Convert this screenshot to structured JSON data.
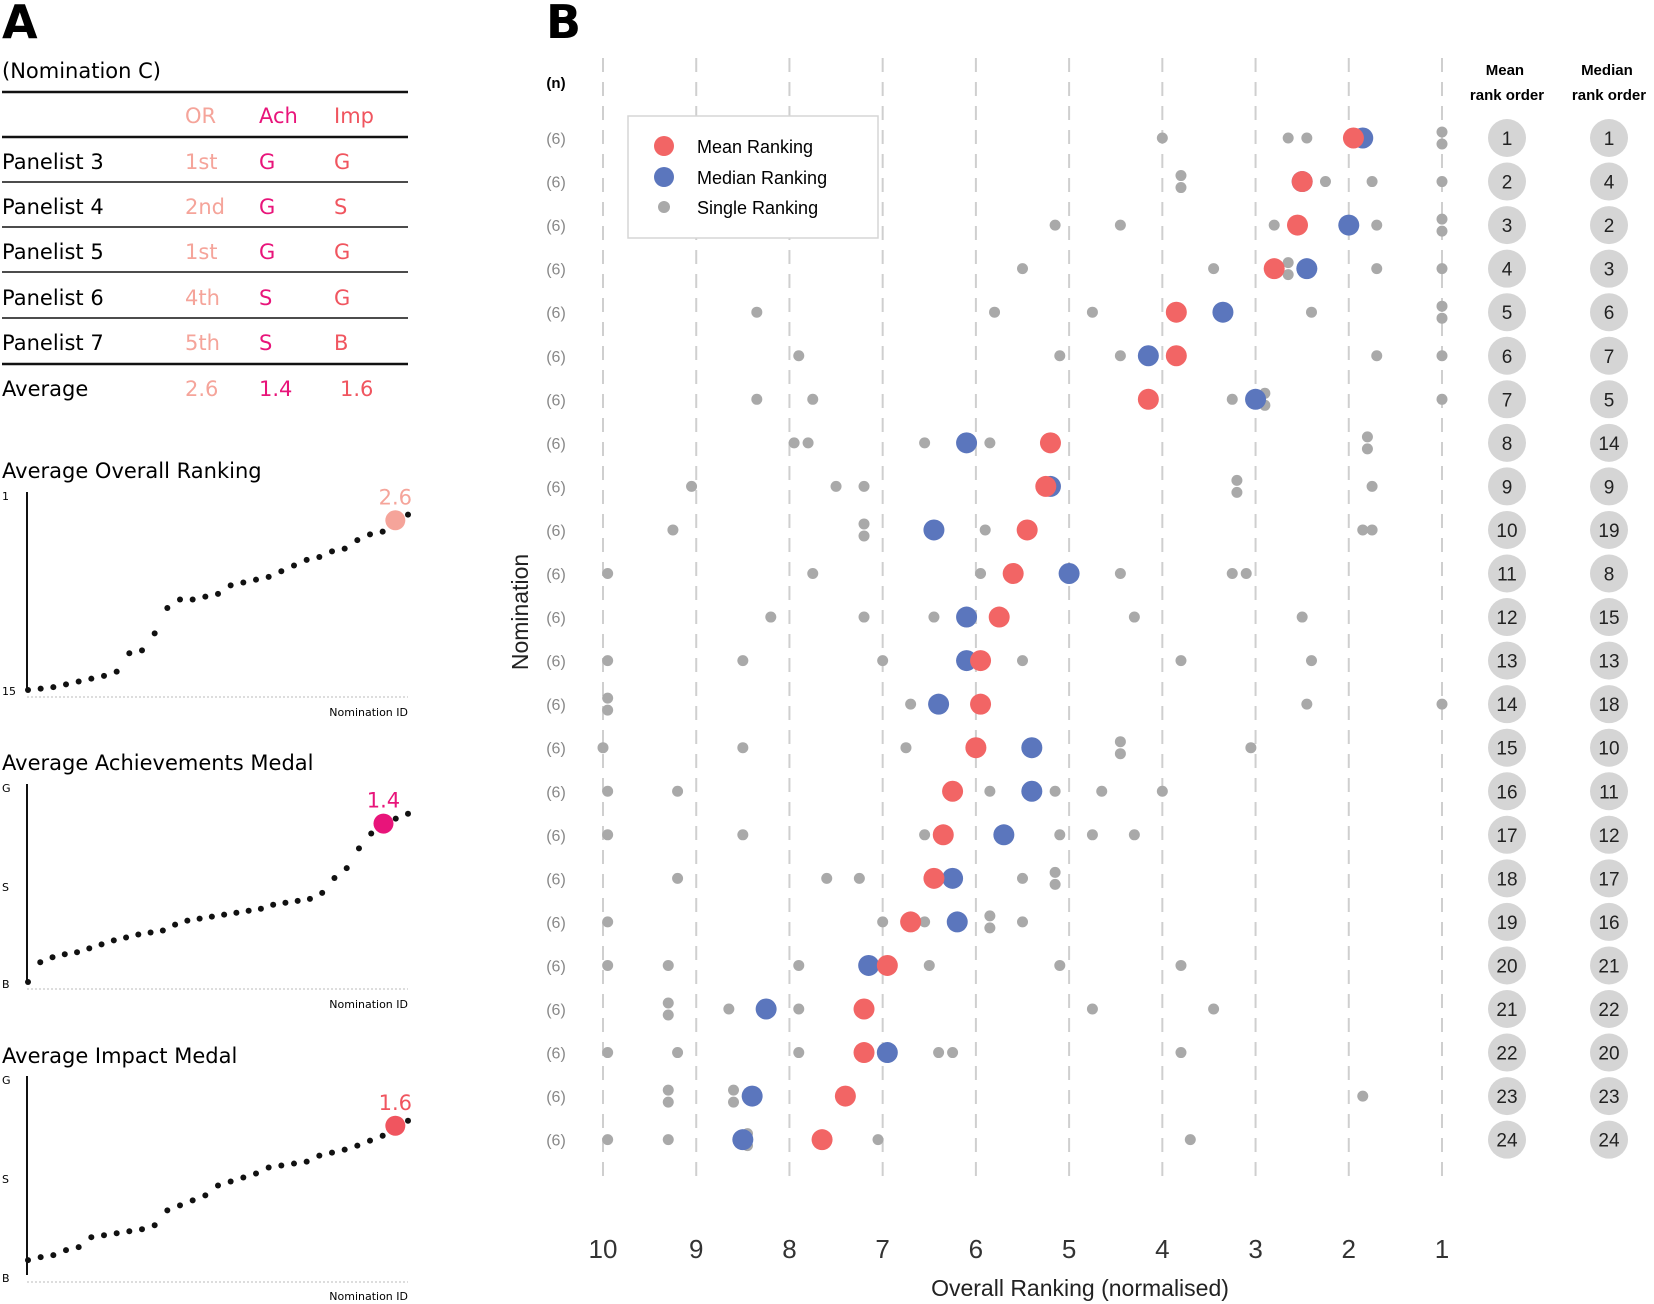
{
  "panels": {
    "a_letter": "A",
    "b_letter": "B"
  },
  "table": {
    "caption": "(Nomination C)",
    "headers": [
      "OR",
      "Ach",
      "Imp"
    ],
    "rows": [
      {
        "name": "Panelist 3",
        "or": "1st",
        "ach": "G",
        "imp": "G"
      },
      {
        "name": "Panelist 4",
        "or": "2nd",
        "ach": "G",
        "imp": "S"
      },
      {
        "name": "Panelist 5",
        "or": "1st",
        "ach": "G",
        "imp": "G"
      },
      {
        "name": "Panelist 6",
        "or": "4th",
        "ach": "S",
        "imp": "G"
      },
      {
        "name": "Panelist 7",
        "or": "5th",
        "ach": "S",
        "imp": "B"
      }
    ],
    "average": {
      "label": "Average",
      "or": "2.6",
      "ach": "1.4",
      "imp": "1.6"
    }
  },
  "colors": {
    "or": "#f5a49a",
    "ach": "#e8147a",
    "imp": "#f0555f",
    "mean": "#f26565",
    "median": "#5b76bd",
    "single": "#a9a9a9",
    "circle_bg": "#d5d5d5"
  },
  "chart_data": [
    {
      "type": "scatter",
      "title": "Average Overall Ranking",
      "xlabel": "Nomination ID",
      "y_top_label": "1",
      "y_bottom_label": "15",
      "highlight_label": "2.6",
      "highlight_color": "#f5a49a",
      "y": [
        15.0,
        14.9,
        14.8,
        14.6,
        14.4,
        14.2,
        14.0,
        13.7,
        12.4,
        12.2,
        11.0,
        9.2,
        8.6,
        8.6,
        8.4,
        8.2,
        7.6,
        7.4,
        7.2,
        7.0,
        6.6,
        6.2,
        5.8,
        5.6,
        5.2,
        5.0,
        4.4,
        4.0,
        3.8,
        3.0,
        2.6
      ]
    },
    {
      "type": "scatter",
      "title": "Average Achievements Medal",
      "xlabel": "Nomination ID",
      "y_top_label": "G",
      "y_mid_label": "S",
      "y_bottom_label": "B",
      "highlight_label": "1.4",
      "highlight_color": "#e8147a",
      "y": [
        3.0,
        2.8,
        2.75,
        2.72,
        2.7,
        2.66,
        2.62,
        2.58,
        2.55,
        2.52,
        2.5,
        2.48,
        2.42,
        2.38,
        2.36,
        2.34,
        2.32,
        2.3,
        2.28,
        2.26,
        2.22,
        2.2,
        2.18,
        2.16,
        2.1,
        1.95,
        1.85,
        1.65,
        1.5,
        1.4,
        1.35,
        1.3
      ]
    },
    {
      "type": "scatter",
      "title": "Average Impact Medal",
      "xlabel": "Nomination ID",
      "y_top_label": "G",
      "y_mid_label": "S",
      "y_bottom_label": "B",
      "highlight_label": "1.6",
      "highlight_color": "#f0555f",
      "y": [
        2.85,
        2.82,
        2.8,
        2.75,
        2.72,
        2.62,
        2.6,
        2.58,
        2.56,
        2.54,
        2.5,
        2.35,
        2.3,
        2.25,
        2.2,
        2.1,
        2.06,
        2.02,
        1.98,
        1.92,
        1.9,
        1.88,
        1.86,
        1.8,
        1.77,
        1.74,
        1.7,
        1.65,
        1.6,
        1.5,
        1.45
      ]
    },
    {
      "type": "scatter",
      "xlabel": "Overall Ranking (normalised)",
      "ylabel": "Nomination",
      "n_header": "(n)",
      "xlim": [
        10,
        1
      ],
      "xticks": [
        10,
        9,
        8,
        7,
        6,
        5,
        4,
        3,
        2,
        1
      ],
      "legend": {
        "position": "top-left",
        "items": [
          "Mean Ranking",
          "Median Ranking",
          "Single Ranking"
        ]
      },
      "col_headers": {
        "mean": [
          "Mean",
          "rank order"
        ],
        "median": [
          "Median",
          "rank order"
        ]
      },
      "rows": [
        {
          "n": "(6)",
          "mean": 1.95,
          "median": 1.85,
          "singles": [
            4.0,
            2.65,
            2.45,
            1.95,
            1.0,
            1.0
          ],
          "mean_rank": "1",
          "median_rank": "1"
        },
        {
          "n": "(6)",
          "mean": 2.5,
          "median": 2.5,
          "singles": [
            3.8,
            3.8,
            2.5,
            2.25,
            1.75,
            1.0
          ],
          "mean_rank": "2",
          "median_rank": "4"
        },
        {
          "n": "(6)",
          "mean": 2.55,
          "median": 2.0,
          "singles": [
            5.15,
            4.45,
            2.8,
            1.7,
            1.0,
            1.0
          ],
          "mean_rank": "3",
          "median_rank": "2"
        },
        {
          "n": "(6)",
          "mean": 2.8,
          "median": 2.45,
          "singles": [
            5.5,
            3.45,
            2.65,
            2.65,
            1.7,
            1.0
          ],
          "mean_rank": "4",
          "median_rank": "3"
        },
        {
          "n": "(6)",
          "mean": 3.85,
          "median": 3.35,
          "singles": [
            8.35,
            5.8,
            4.75,
            2.4,
            1.0,
            1.0
          ],
          "mean_rank": "5",
          "median_rank": "6"
        },
        {
          "n": "(6)",
          "mean": 3.85,
          "median": 4.15,
          "singles": [
            7.9,
            5.1,
            4.45,
            4.15,
            1.7,
            1.0
          ],
          "mean_rank": "6",
          "median_rank": "7"
        },
        {
          "n": "(6)",
          "mean": 4.15,
          "median": 3.0,
          "singles": [
            8.35,
            7.75,
            3.25,
            2.9,
            2.9,
            1.0
          ],
          "mean_rank": "7",
          "median_rank": "5"
        },
        {
          "n": "(6)",
          "mean": 5.2,
          "median": 6.1,
          "singles": [
            7.95,
            7.8,
            6.55,
            5.85,
            1.8,
            1.8
          ],
          "mean_rank": "8",
          "median_rank": "14"
        },
        {
          "n": "(6)",
          "mean": 5.25,
          "median": 5.2,
          "singles": [
            9.05,
            7.5,
            7.2,
            3.2,
            3.2,
            1.75
          ],
          "mean_rank": "9",
          "median_rank": "9"
        },
        {
          "n": "(6)",
          "mean": 5.45,
          "median": 6.45,
          "singles": [
            9.25,
            7.2,
            7.2,
            5.9,
            1.85,
            1.75
          ],
          "mean_rank": "10",
          "median_rank": "19"
        },
        {
          "n": "(6)",
          "mean": 5.6,
          "median": 5.0,
          "singles": [
            9.95,
            7.75,
            5.95,
            4.45,
            3.25,
            3.1
          ],
          "mean_rank": "11",
          "median_rank": "8"
        },
        {
          "n": "(6)",
          "mean": 5.75,
          "median": 6.1,
          "singles": [
            8.2,
            7.2,
            6.45,
            6.1,
            4.3,
            2.5
          ],
          "mean_rank": "12",
          "median_rank": "15"
        },
        {
          "n": "(6)",
          "mean": 5.95,
          "median": 6.1,
          "singles": [
            9.95,
            8.5,
            7.0,
            5.5,
            3.8,
            2.4
          ],
          "mean_rank": "13",
          "median_rank": "13"
        },
        {
          "n": "(6)",
          "mean": 5.95,
          "median": 6.4,
          "singles": [
            9.95,
            9.95,
            6.7,
            6.35,
            2.45,
            1.0
          ],
          "mean_rank": "14",
          "median_rank": "18"
        },
        {
          "n": "(6)",
          "mean": 6.0,
          "median": 5.4,
          "singles": [
            10.0,
            8.5,
            6.75,
            4.45,
            4.45,
            3.05
          ],
          "mean_rank": "15",
          "median_rank": "10"
        },
        {
          "n": "(6)",
          "mean": 6.25,
          "median": 5.4,
          "singles": [
            9.95,
            9.2,
            5.85,
            5.15,
            4.65,
            4.0
          ],
          "mean_rank": "16",
          "median_rank": "11"
        },
        {
          "n": "(6)",
          "mean": 6.35,
          "median": 5.7,
          "singles": [
            9.95,
            8.5,
            6.55,
            5.1,
            4.75,
            4.3
          ],
          "mean_rank": "17",
          "median_rank": "12"
        },
        {
          "n": "(6)",
          "mean": 6.45,
          "median": 6.25,
          "singles": [
            9.2,
            7.6,
            7.25,
            5.5,
            5.15,
            5.15
          ],
          "mean_rank": "18",
          "median_rank": "17"
        },
        {
          "n": "(6)",
          "mean": 6.7,
          "median": 6.2,
          "singles": [
            9.95,
            7.0,
            6.55,
            5.85,
            5.85,
            5.5
          ],
          "mean_rank": "19",
          "median_rank": "16"
        },
        {
          "n": "(6)",
          "mean": 6.95,
          "median": 7.15,
          "singles": [
            9.95,
            9.3,
            7.9,
            6.5,
            5.1,
            3.8
          ],
          "mean_rank": "20",
          "median_rank": "21"
        },
        {
          "n": "(6)",
          "mean": 7.2,
          "median": 8.25,
          "singles": [
            9.3,
            9.3,
            8.65,
            7.9,
            4.75,
            3.45
          ],
          "mean_rank": "21",
          "median_rank": "22"
        },
        {
          "n": "(6)",
          "mean": 7.2,
          "median": 6.95,
          "singles": [
            9.95,
            9.2,
            7.9,
            6.4,
            6.25,
            3.8
          ],
          "mean_rank": "22",
          "median_rank": "20"
        },
        {
          "n": "(6)",
          "mean": 7.4,
          "median": 8.4,
          "singles": [
            9.3,
            9.3,
            8.6,
            8.6,
            7.4,
            1.85
          ],
          "mean_rank": "23",
          "median_rank": "23"
        },
        {
          "n": "(6)",
          "mean": 7.65,
          "median": 8.5,
          "singles": [
            9.95,
            9.3,
            8.45,
            8.45,
            7.05,
            3.7
          ],
          "mean_rank": "24",
          "median_rank": "24"
        }
      ]
    }
  ]
}
